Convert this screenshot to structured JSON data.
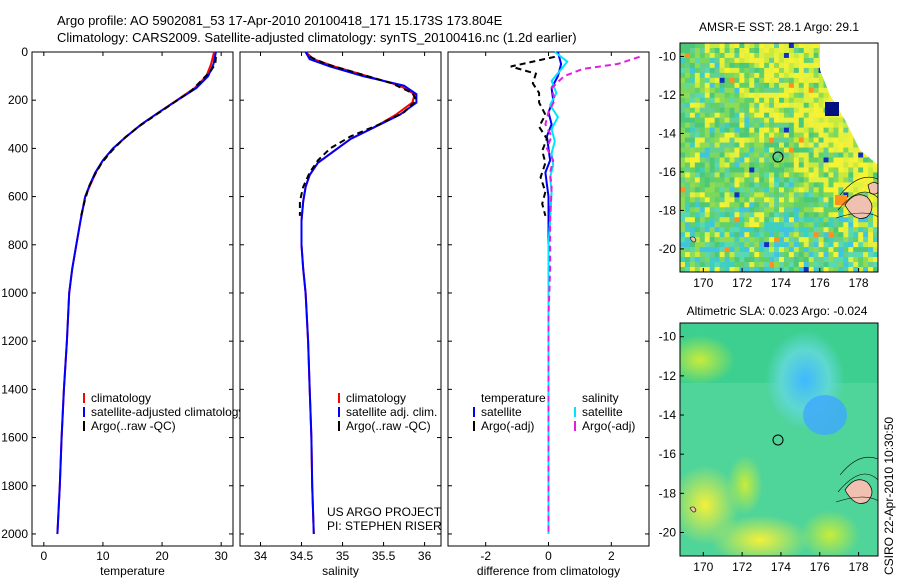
{
  "title_line1": "Argo profile: AO 5902081_53 17-Apr-2010 20100418_171 15.173S 173.804E",
  "title_line2": "Climatology: CARS2009. Satellite-adjusted climatology: synTS_20100416.nc (1.2d earlier)",
  "colors": {
    "climatology": "#ff0000",
    "satellite": "#0000ff",
    "argo": "#000000",
    "sat_salinity": "#00e5ff",
    "argo_salinity": "#e020e0",
    "axis": "#000000"
  },
  "depth_ticks": [
    "0",
    "200",
    "400",
    "600",
    "800",
    "1000",
    "1200",
    "1400",
    "1600",
    "1800",
    "2000"
  ],
  "chart_data": [
    {
      "type": "line",
      "name": "temperature-profile",
      "xlabel": "temperature",
      "xlim": [
        -2,
        32
      ],
      "ylim": [
        0,
        2050
      ],
      "yreversed": true,
      "xticks": [
        "0",
        "10",
        "20",
        "30"
      ],
      "legend": [
        "climatology",
        "satellite-adjusted climatology",
        "Argo(..raw -QC)"
      ],
      "legend_position": "bottom-left",
      "series": [
        {
          "name": "climatology",
          "color_key": "climatology",
          "dash": "",
          "points": [
            [
              28.8,
              0
            ],
            [
              28.3,
              50
            ],
            [
              27.5,
              100
            ],
            [
              25.5,
              150
            ],
            [
              22.5,
              200
            ],
            [
              19.5,
              250
            ],
            [
              16.5,
              300
            ],
            [
              14,
              350
            ],
            [
              11.7,
              400
            ],
            [
              10,
              450
            ],
            [
              8.8,
              500
            ],
            [
              7.9,
              550
            ],
            [
              7,
              600
            ],
            [
              6.2,
              700
            ],
            [
              5.5,
              800
            ],
            [
              4.8,
              900
            ],
            [
              4.3,
              1000
            ],
            [
              3.9,
              1200
            ],
            [
              3.4,
              1400
            ],
            [
              3,
              1600
            ],
            [
              2.7,
              1800
            ],
            [
              2.3,
              2000
            ]
          ]
        },
        {
          "name": "satellite-adjusted",
          "color_key": "satellite",
          "dash": "",
          "points": [
            [
              29.1,
              0
            ],
            [
              28.7,
              50
            ],
            [
              27.8,
              100
            ],
            [
              25.8,
              150
            ],
            [
              22.6,
              200
            ],
            [
              19.5,
              250
            ],
            [
              16.5,
              300
            ],
            [
              14,
              350
            ],
            [
              11.7,
              400
            ],
            [
              10,
              450
            ],
            [
              8.7,
              500
            ],
            [
              7.8,
              550
            ],
            [
              7,
              600
            ],
            [
              6.2,
              700
            ],
            [
              5.5,
              800
            ],
            [
              4.8,
              900
            ],
            [
              4.3,
              1000
            ],
            [
              3.9,
              1200
            ],
            [
              3.4,
              1400
            ],
            [
              3,
              1600
            ],
            [
              2.7,
              1800
            ],
            [
              2.3,
              2000
            ]
          ]
        },
        {
          "name": "argo",
          "color_key": "argo",
          "dash": "6,4",
          "points": [
            [
              29.1,
              20
            ],
            [
              29,
              50
            ],
            [
              28.2,
              80
            ],
            [
              27,
              110
            ],
            [
              25,
              160
            ],
            [
              22,
              210
            ],
            [
              19,
              260
            ],
            [
              16,
              310
            ],
            [
              13.5,
              360
            ],
            [
              11.5,
              410
            ],
            [
              9.8,
              460
            ],
            [
              8.6,
              510
            ],
            [
              7.6,
              560
            ],
            [
              6.9,
              620
            ],
            [
              6.3,
              680
            ]
          ]
        }
      ]
    },
    {
      "type": "line",
      "name": "salinity-profile",
      "xlabel": "salinity",
      "xlim": [
        33.75,
        36.2
      ],
      "ylim": [
        0,
        2050
      ],
      "yreversed": true,
      "xticks": [
        "34",
        "34.5",
        "35",
        "35.5",
        "36"
      ],
      "legend": [
        "climatology",
        "satellite adj. clim.",
        "Argo(..raw -QC)"
      ],
      "legend_position": "bottom-left",
      "annotation": [
        "US ARGO PROJECT",
        "PI: STEPHEN RISER"
      ],
      "series": [
        {
          "name": "climatology",
          "color_key": "climatology",
          "dash": "",
          "points": [
            [
              34.55,
              0
            ],
            [
              34.65,
              30
            ],
            [
              34.9,
              60
            ],
            [
              35.3,
              100
            ],
            [
              35.7,
              140
            ],
            [
              35.88,
              175
            ],
            [
              35.85,
              210
            ],
            [
              35.65,
              260
            ],
            [
              35.4,
              310
            ],
            [
              35.1,
              360
            ],
            [
              34.9,
              410
            ],
            [
              34.7,
              460
            ],
            [
              34.6,
              510
            ],
            [
              34.55,
              560
            ],
            [
              34.52,
              620
            ],
            [
              34.5,
              700
            ],
            [
              34.5,
              800
            ],
            [
              34.52,
              900
            ],
            [
              34.55,
              1000
            ],
            [
              34.58,
              1200
            ],
            [
              34.6,
              1400
            ],
            [
              34.62,
              1600
            ],
            [
              34.63,
              1800
            ],
            [
              34.65,
              2000
            ]
          ]
        },
        {
          "name": "satellite-adjusted",
          "color_key": "satellite",
          "dash": "",
          "points": [
            [
              34.55,
              0
            ],
            [
              34.6,
              30
            ],
            [
              34.85,
              60
            ],
            [
              35.25,
              100
            ],
            [
              35.75,
              140
            ],
            [
              35.9,
              175
            ],
            [
              35.9,
              210
            ],
            [
              35.7,
              260
            ],
            [
              35.4,
              310
            ],
            [
              35.1,
              360
            ],
            [
              34.9,
              410
            ],
            [
              34.7,
              460
            ],
            [
              34.6,
              510
            ],
            [
              34.55,
              560
            ],
            [
              34.52,
              620
            ],
            [
              34.5,
              700
            ],
            [
              34.5,
              800
            ],
            [
              34.52,
              900
            ],
            [
              34.55,
              1000
            ],
            [
              34.58,
              1200
            ],
            [
              34.6,
              1400
            ],
            [
              34.62,
              1600
            ],
            [
              34.63,
              1800
            ],
            [
              34.65,
              2000
            ]
          ]
        },
        {
          "name": "argo",
          "color_key": "argo",
          "dash": "6,4",
          "points": [
            [
              34.6,
              20
            ],
            [
              34.8,
              50
            ],
            [
              35.2,
              90
            ],
            [
              35.6,
              130
            ],
            [
              35.85,
              170
            ],
            [
              35.9,
              200
            ],
            [
              35.75,
              250
            ],
            [
              35.45,
              300
            ],
            [
              35.1,
              350
            ],
            [
              34.85,
              400
            ],
            [
              34.7,
              450
            ],
            [
              34.6,
              500
            ],
            [
              34.52,
              560
            ],
            [
              34.48,
              620
            ],
            [
              34.48,
              680
            ]
          ]
        }
      ]
    },
    {
      "type": "line",
      "name": "difference-profile",
      "xlabel": "difference from climatology",
      "xlim": [
        -3.2,
        3.2
      ],
      "ylim": [
        0,
        2050
      ],
      "yreversed": true,
      "xticks": [
        "-2",
        "0",
        "2"
      ],
      "legend_titles": [
        "temperature",
        "salinity"
      ],
      "legend": [
        "satellite",
        "Argo(-adj)",
        "satellite",
        "Argo(-adj)"
      ],
      "legend_position": "bottom-center",
      "series": [
        {
          "name": "temperature-satellite",
          "color_key": "satellite",
          "dash": "",
          "points": [
            [
              0.3,
              0
            ],
            [
              0.4,
              50
            ],
            [
              0.3,
              100
            ],
            [
              0.1,
              150
            ],
            [
              0.15,
              200
            ],
            [
              0,
              250
            ],
            [
              0.1,
              300
            ],
            [
              -0.05,
              350
            ],
            [
              0,
              400
            ],
            [
              0.05,
              450
            ],
            [
              -0.1,
              500
            ],
            [
              -0.05,
              550
            ],
            [
              0,
              600
            ],
            [
              0,
              700
            ],
            [
              0,
              800
            ],
            [
              0,
              1000
            ],
            [
              0,
              1200
            ],
            [
              0,
              1400
            ],
            [
              0,
              1600
            ],
            [
              0,
              1800
            ],
            [
              0,
              2000
            ]
          ]
        },
        {
          "name": "temperature-argo",
          "color_key": "argo",
          "dash": "6,4",
          "points": [
            [
              0.2,
              20
            ],
            [
              -1.2,
              60
            ],
            [
              -0.4,
              90
            ],
            [
              -0.5,
              130
            ],
            [
              -0.3,
              170
            ],
            [
              -0.3,
              210
            ],
            [
              -0.1,
              260
            ],
            [
              -0.3,
              310
            ],
            [
              -0.05,
              360
            ],
            [
              -0.2,
              410
            ],
            [
              -0.1,
              460
            ],
            [
              -0.25,
              520
            ],
            [
              -0.1,
              580
            ],
            [
              -0.2,
              630
            ],
            [
              -0.1,
              680
            ]
          ]
        },
        {
          "name": "salinity-satellite",
          "color_key": "sat_salinity",
          "dash": "",
          "points": [
            [
              0.2,
              0
            ],
            [
              0.6,
              40
            ],
            [
              0.35,
              80
            ],
            [
              0.1,
              120
            ],
            [
              0.25,
              170
            ],
            [
              0.05,
              220
            ],
            [
              0.3,
              270
            ],
            [
              0.1,
              320
            ],
            [
              0.2,
              370
            ],
            [
              0.1,
              420
            ],
            [
              0.15,
              470
            ],
            [
              0.05,
              520
            ],
            [
              0.1,
              580
            ],
            [
              0.05,
              700
            ],
            [
              0,
              800
            ],
            [
              0,
              1000
            ],
            [
              0,
              1200
            ],
            [
              0,
              1400
            ],
            [
              0,
              1600
            ],
            [
              0,
              1800
            ],
            [
              0,
              2000
            ]
          ]
        },
        {
          "name": "salinity-argo",
          "color_key": "argo_salinity",
          "dash": "6,4",
          "points": [
            [
              2.9,
              20
            ],
            [
              2.2,
              50
            ],
            [
              1.1,
              70
            ],
            [
              0.5,
              100
            ],
            [
              0.1,
              150
            ],
            [
              0.2,
              200
            ],
            [
              0,
              250
            ],
            [
              -0.1,
              300
            ],
            [
              0.1,
              350
            ],
            [
              -0.05,
              400
            ],
            [
              0.15,
              450
            ],
            [
              0.05,
              500
            ],
            [
              0.1,
              560
            ],
            [
              0.05,
              700
            ],
            [
              0.05,
              900
            ],
            [
              0,
              1100
            ],
            [
              0,
              1300
            ],
            [
              0,
              1500
            ],
            [
              0,
              1700
            ],
            [
              0,
              1900
            ],
            [
              0,
              2000
            ]
          ]
        }
      ]
    },
    {
      "type": "heatmap",
      "name": "sst-map",
      "title": "AMSR-E SST: 28.1 Argo: 29.1",
      "xlim": [
        168.8,
        179
      ],
      "ylim": [
        -21.2,
        -9.3
      ],
      "xticks": [
        "170",
        "172",
        "174",
        "176",
        "178"
      ],
      "yticks": [
        "-10",
        "-12",
        "-14",
        "-16",
        "-18",
        "-20"
      ],
      "float_position": [
        173.8,
        -15.17
      ]
    },
    {
      "type": "heatmap",
      "name": "sla-map",
      "title": "Altimetric SLA: 0.023 Argo: -0.024",
      "xlim": [
        168.8,
        179
      ],
      "ylim": [
        -21.2,
        -9.3
      ],
      "xticks": [
        "170",
        "172",
        "174",
        "176",
        "178"
      ],
      "yticks": [
        "-10",
        "-12",
        "-14",
        "-16",
        "-18",
        "-20"
      ],
      "float_position": [
        173.8,
        -15.17
      ]
    }
  ],
  "footer": "CSIRO 22-Apr-2010 10:30:50"
}
